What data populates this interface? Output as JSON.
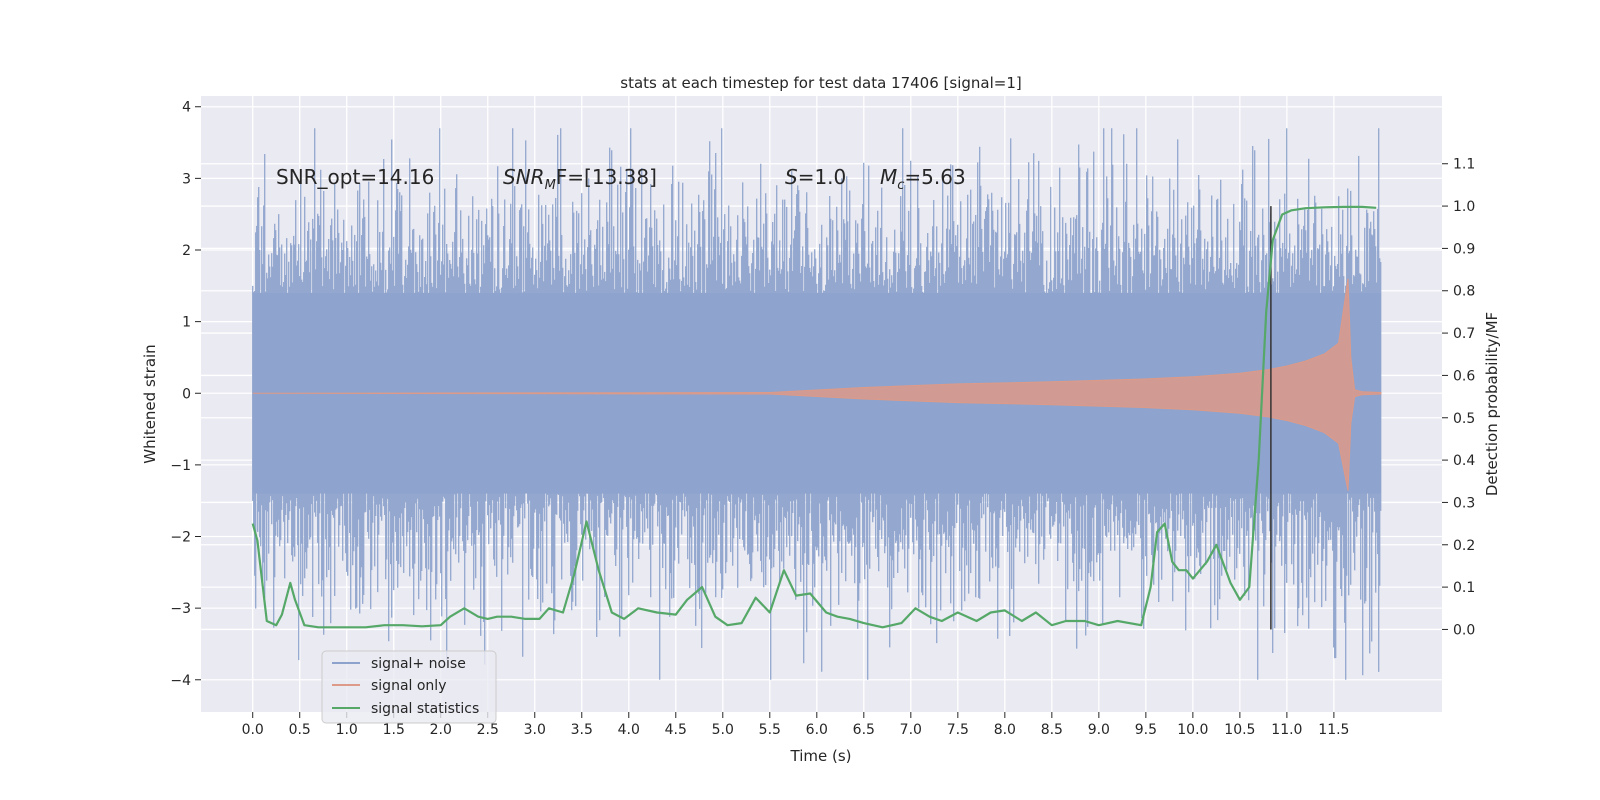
{
  "chart_data": {
    "type": "line",
    "title": "stats at each timestep for test data 17406 [signal=1]",
    "xlabel": "Time (s)",
    "ylabel": "Whitened strain",
    "y2label": "Detection probability/MF",
    "xlim": [
      -0.55,
      12.65
    ],
    "ylim": [
      -4.45,
      4.15
    ],
    "y2lim": [
      -0.195,
      1.26
    ],
    "xticks": [
      0.0,
      0.5,
      1.0,
      1.5,
      2.0,
      2.5,
      3.0,
      3.5,
      4.0,
      4.5,
      5.0,
      5.5,
      6.0,
      6.5,
      7.0,
      7.5,
      8.0,
      8.5,
      9.0,
      9.5,
      10.0,
      10.5,
      11.0,
      11.5
    ],
    "xtick_labels": [
      "0.0",
      "0.5",
      "1.0",
      "1.5",
      "2.0",
      "2.5",
      "3.0",
      "3.5",
      "4.0",
      "4.5",
      "5.0",
      "5.5",
      "6.0",
      "6.5",
      "7.0",
      "7.5",
      "8.0",
      "8.5",
      "9.0",
      "9.5",
      "10.0",
      "10.5",
      "11.0",
      "11.5"
    ],
    "yticks": [
      -4,
      -3,
      -2,
      -1,
      0,
      1,
      2,
      3,
      4
    ],
    "ytick_labels": [
      "−4",
      "−3",
      "−2",
      "−1",
      "0",
      "1",
      "2",
      "3",
      "4"
    ],
    "y2ticks": [
      0.0,
      0.1,
      0.2,
      0.3,
      0.4,
      0.5,
      0.6,
      0.7,
      0.8,
      0.9,
      1.0,
      1.1
    ],
    "y2tick_labels": [
      "0.0",
      "0.1",
      "0.2",
      "0.3",
      "0.4",
      "0.5",
      "0.6",
      "0.7",
      "0.8",
      "0.9",
      "1.0",
      "1.1"
    ],
    "grid": true,
    "legend_position": "bottom-left",
    "annotations": {
      "snr_opt": "SNR_opt=14.16",
      "snr_mf_main": "SNR",
      "snr_mf_sub": "M",
      "snr_mf_rest": "F=[13.38]",
      "s_it": "S",
      "s_rest": "=1.0",
      "mc_it": "M",
      "mc_sub": "c",
      "mc_rest": "=5.63"
    },
    "vertical_line_x": 10.83,
    "series": [
      {
        "name": "signal+ noise",
        "axis": "left",
        "color": "#8ea3cc",
        "t_range": [
          0.0,
          12.0
        ],
        "core_amplitude": 1.4,
        "peak_amplitude": 3.7,
        "description_values": "dense white noise, std ≈ 0.8"
      },
      {
        "name": "signal only",
        "axis": "left",
        "color": "#dd9a88",
        "envelope": {
          "t": [
            0.0,
            5.5,
            6.5,
            7.5,
            8.5,
            9.5,
            10.0,
            10.5,
            10.8,
            11.0,
            11.2,
            11.4,
            11.55,
            11.65,
            11.68,
            11.72,
            11.8,
            12.0
          ],
          "amplitude": [
            0.0,
            0.01,
            0.08,
            0.13,
            0.16,
            0.2,
            0.23,
            0.28,
            0.33,
            0.38,
            0.45,
            0.55,
            0.7,
            1.6,
            0.5,
            0.05,
            0.02,
            0.01
          ]
        }
      },
      {
        "name": "signal statistics",
        "axis": "right",
        "color": "#55a868",
        "t": [
          0.0,
          0.05,
          0.15,
          0.25,
          0.31,
          0.4,
          0.45,
          0.55,
          0.7,
          1.0,
          1.2,
          1.4,
          1.6,
          1.8,
          2.0,
          2.1,
          2.25,
          2.4,
          2.5,
          2.6,
          2.75,
          2.9,
          3.05,
          3.15,
          3.3,
          3.42,
          3.55,
          3.68,
          3.82,
          3.95,
          4.1,
          4.3,
          4.5,
          4.62,
          4.78,
          4.92,
          5.05,
          5.2,
          5.35,
          5.5,
          5.65,
          5.78,
          5.93,
          6.1,
          6.22,
          6.35,
          6.5,
          6.7,
          6.9,
          7.05,
          7.2,
          7.33,
          7.5,
          7.7,
          7.85,
          8.0,
          8.18,
          8.33,
          8.5,
          8.65,
          8.85,
          9.0,
          9.2,
          9.45,
          9.55,
          9.62,
          9.7,
          9.78,
          9.85,
          9.93,
          10.0,
          10.15,
          10.25,
          10.4,
          10.5,
          10.6,
          10.7,
          10.78,
          10.85,
          10.95,
          11.05,
          11.2,
          11.4,
          11.6,
          11.8,
          11.95
        ],
        "values": [
          0.25,
          0.21,
          0.02,
          0.01,
          0.035,
          0.11,
          0.07,
          0.01,
          0.005,
          0.005,
          0.005,
          0.01,
          0.01,
          0.0075,
          0.01,
          0.03,
          0.05,
          0.03,
          0.025,
          0.03,
          0.03,
          0.025,
          0.025,
          0.05,
          0.04,
          0.13,
          0.255,
          0.14,
          0.04,
          0.025,
          0.05,
          0.04,
          0.035,
          0.07,
          0.1,
          0.03,
          0.01,
          0.015,
          0.075,
          0.04,
          0.14,
          0.08,
          0.085,
          0.04,
          0.03,
          0.025,
          0.015,
          0.005,
          0.015,
          0.05,
          0.03,
          0.02,
          0.04,
          0.02,
          0.04,
          0.045,
          0.02,
          0.04,
          0.01,
          0.02,
          0.02,
          0.01,
          0.02,
          0.01,
          0.1,
          0.23,
          0.25,
          0.16,
          0.14,
          0.14,
          0.12,
          0.16,
          0.2,
          0.11,
          0.07,
          0.1,
          0.4,
          0.75,
          0.92,
          0.98,
          0.99,
          0.995,
          0.997,
          0.998,
          0.998,
          0.996
        ]
      }
    ]
  }
}
